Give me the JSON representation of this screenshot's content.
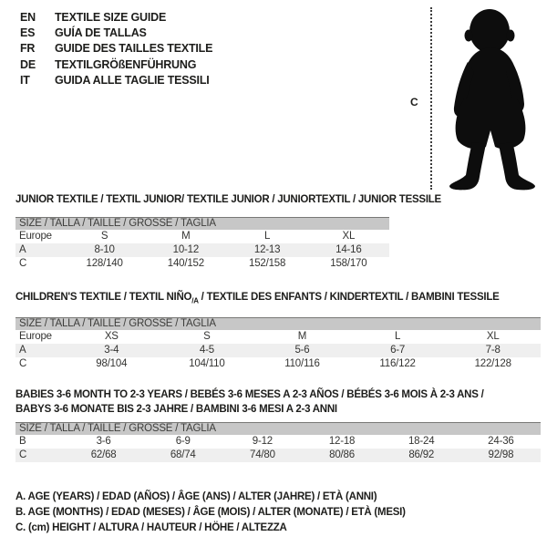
{
  "colors": {
    "header_bar": "#c7c7c7",
    "shaded_row": "#efefef",
    "text": "#1d1d1b",
    "silhouette": "#0d0d0d"
  },
  "languages": {
    "items": [
      {
        "code": "EN",
        "label": "TEXTILE SIZE GUIDE"
      },
      {
        "code": "ES",
        "label": "GUÍA DE TALLAS"
      },
      {
        "code": "FR",
        "label": "GUIDE DES TAILLES TEXTILE"
      },
      {
        "code": "DE",
        "label": "TEXTILGRÖßENFÜHRUNG"
      },
      {
        "code": "IT",
        "label": "GUIDA ALLE TAGLIE TESSILI"
      }
    ]
  },
  "figure": {
    "measure_label": "C"
  },
  "sections": [
    {
      "title": "JUNIOR TEXTILE / TEXTIL JUNIOR/ TEXTILE JUNIOR / JUNIORTEXTIL / JUNIOR TESSILE",
      "size_header": "SIZE / TALLA / TAILLE / GRÖSSE / TAGLIA",
      "rows": [
        {
          "label": "Europe",
          "values": [
            "S",
            "M",
            "L",
            "XL"
          ],
          "shaded": false
        },
        {
          "label": "A",
          "values": [
            "8-10",
            "10-12",
            "12-13",
            "14-16"
          ],
          "shaded": true
        },
        {
          "label": "C",
          "values": [
            "128/140",
            "140/152",
            "152/158",
            "158/170"
          ],
          "shaded": false
        }
      ]
    },
    {
      "title_pre": "CHILDREN'S TEXTILE / TEXTIL NIÑO",
      "title_sub": "/A",
      "title_post": " / TEXTILE DES ENFANTS / KINDERTEXTIL / BAMBINI TESSILE",
      "size_header": "SIZE / TALLA / TAILLE / GRÖSSE / TAGLIA",
      "rows": [
        {
          "label": "Europe",
          "values": [
            "XS",
            "S",
            "M",
            "L",
            "XL"
          ],
          "shaded": false
        },
        {
          "label": "A",
          "values": [
            "3-4",
            "4-5",
            "5-6",
            "6-7",
            "7-8"
          ],
          "shaded": true
        },
        {
          "label": "C",
          "values": [
            "98/104",
            "104/110",
            "110/116",
            "116/122",
            "122/128"
          ],
          "shaded": false
        }
      ]
    },
    {
      "title_line1": "BABIES 3-6 MONTH TO 2-3 YEARS / BEBÉS 3-6 MESES A 2-3 AÑOS / BÉBÉS 3-6 MOIS À 2-3 ANS /",
      "title_line2": "BABYS 3-6 MONATE BIS 2-3 JAHRE / BAMBINI 3-6 MESI A 2-3 ANNI",
      "size_header": "SIZE / TALLA / TAILLE / GRÖSSE / TAGLIA",
      "rows": [
        {
          "label": "B",
          "values": [
            "3-6",
            "6-9",
            "9-12",
            "12-18",
            "18-24",
            "24-36"
          ],
          "shaded": false
        },
        {
          "label": "C",
          "values": [
            "62/68",
            "68/74",
            "74/80",
            "80/86",
            "86/92",
            "92/98"
          ],
          "shaded": true
        }
      ]
    }
  ],
  "footnotes": [
    "A. AGE (YEARS) / EDAD (AÑOS) / ÂGE (ANS) / ALTER (JAHRE) / ETÀ (ANNI)",
    "B. AGE (MONTHS) / EDAD (MESES) / ÂGE (MOIS) / ALTER (MONATE) / ETÀ (MESI)",
    "C. (cm) HEIGHT / ALTURA / HAUTEUR / HÖHE / ALTEZZA"
  ]
}
